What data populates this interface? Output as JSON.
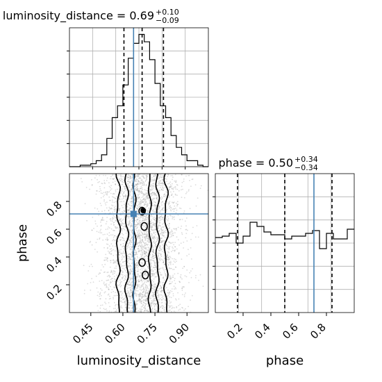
{
  "chart_data": [
    {
      "type": "histogram",
      "title": {
        "label": "luminosity_distance",
        "median": "0.69",
        "plus": "+0.10",
        "minus": "−0.09"
      },
      "x": {
        "min": 0.35,
        "max": 1.0
      },
      "bin_edges": [
        0.35,
        0.375,
        0.4,
        0.425,
        0.45,
        0.475,
        0.5,
        0.525,
        0.55,
        0.575,
        0.6,
        0.625,
        0.65,
        0.675,
        0.7,
        0.725,
        0.75,
        0.775,
        0.8,
        0.825,
        0.85,
        0.875,
        0.9,
        0.925,
        0.95,
        0.975,
        1.0
      ],
      "counts": [
        0,
        0,
        1,
        1,
        2,
        4,
        8,
        19,
        33,
        41,
        55,
        73,
        83,
        89,
        84,
        72,
        56,
        41,
        33,
        21,
        13,
        8,
        4,
        4,
        1,
        0
      ],
      "quantile_lines": [
        0.605,
        0.69,
        0.79
      ],
      "truth": 0.65,
      "truth_color": "#4682b4",
      "xticks": [],
      "yticks": []
    },
    {
      "type": "histogram",
      "title": {
        "label": "phase",
        "median": "0.50",
        "plus": "+0.34",
        "minus": "−0.34"
      },
      "x": {
        "min": 0.0,
        "max": 1.0
      },
      "bin_edges": [
        0.0,
        0.05,
        0.1,
        0.15,
        0.2,
        0.25,
        0.3,
        0.35,
        0.4,
        0.45,
        0.5,
        0.55,
        0.6,
        0.65,
        0.7,
        0.75,
        0.8,
        0.85,
        0.9,
        0.95,
        1.0
      ],
      "counts": [
        54,
        55,
        57,
        50,
        55,
        65,
        62,
        58,
        56,
        56,
        53,
        55,
        55,
        57,
        59,
        46,
        57,
        53,
        53,
        60
      ],
      "y_max": 100,
      "quantile_lines": [
        0.16,
        0.5,
        0.84
      ],
      "truth": 0.71,
      "truth_color": "#4682b4",
      "xticks": [
        "0.2",
        "0.4",
        "0.6",
        "0.8"
      ],
      "xtick_values": [
        0.2,
        0.4,
        0.6,
        0.8
      ],
      "xlabel": "phase"
    },
    {
      "type": "scatter_contour",
      "x": {
        "min": 0.35,
        "max": 1.0,
        "label": "luminosity_distance",
        "ticks": [
          "0.45",
          "0.60",
          "0.75",
          "0.90"
        ],
        "tick_values": [
          0.45,
          0.6,
          0.75,
          0.9
        ]
      },
      "y": {
        "min": 0.0,
        "max": 1.0,
        "label": "phase",
        "ticks": [
          "0.2",
          "0.4",
          "0.6",
          "0.8"
        ],
        "tick_values": [
          0.2,
          0.4,
          0.6,
          0.8
        ]
      },
      "truth": {
        "x": 0.65,
        "y": 0.71
      },
      "truth_color": "#4682b4",
      "distribution": {
        "mean_x": 0.69,
        "sd_x": 0.095,
        "n_points": 3500
      }
    }
  ]
}
